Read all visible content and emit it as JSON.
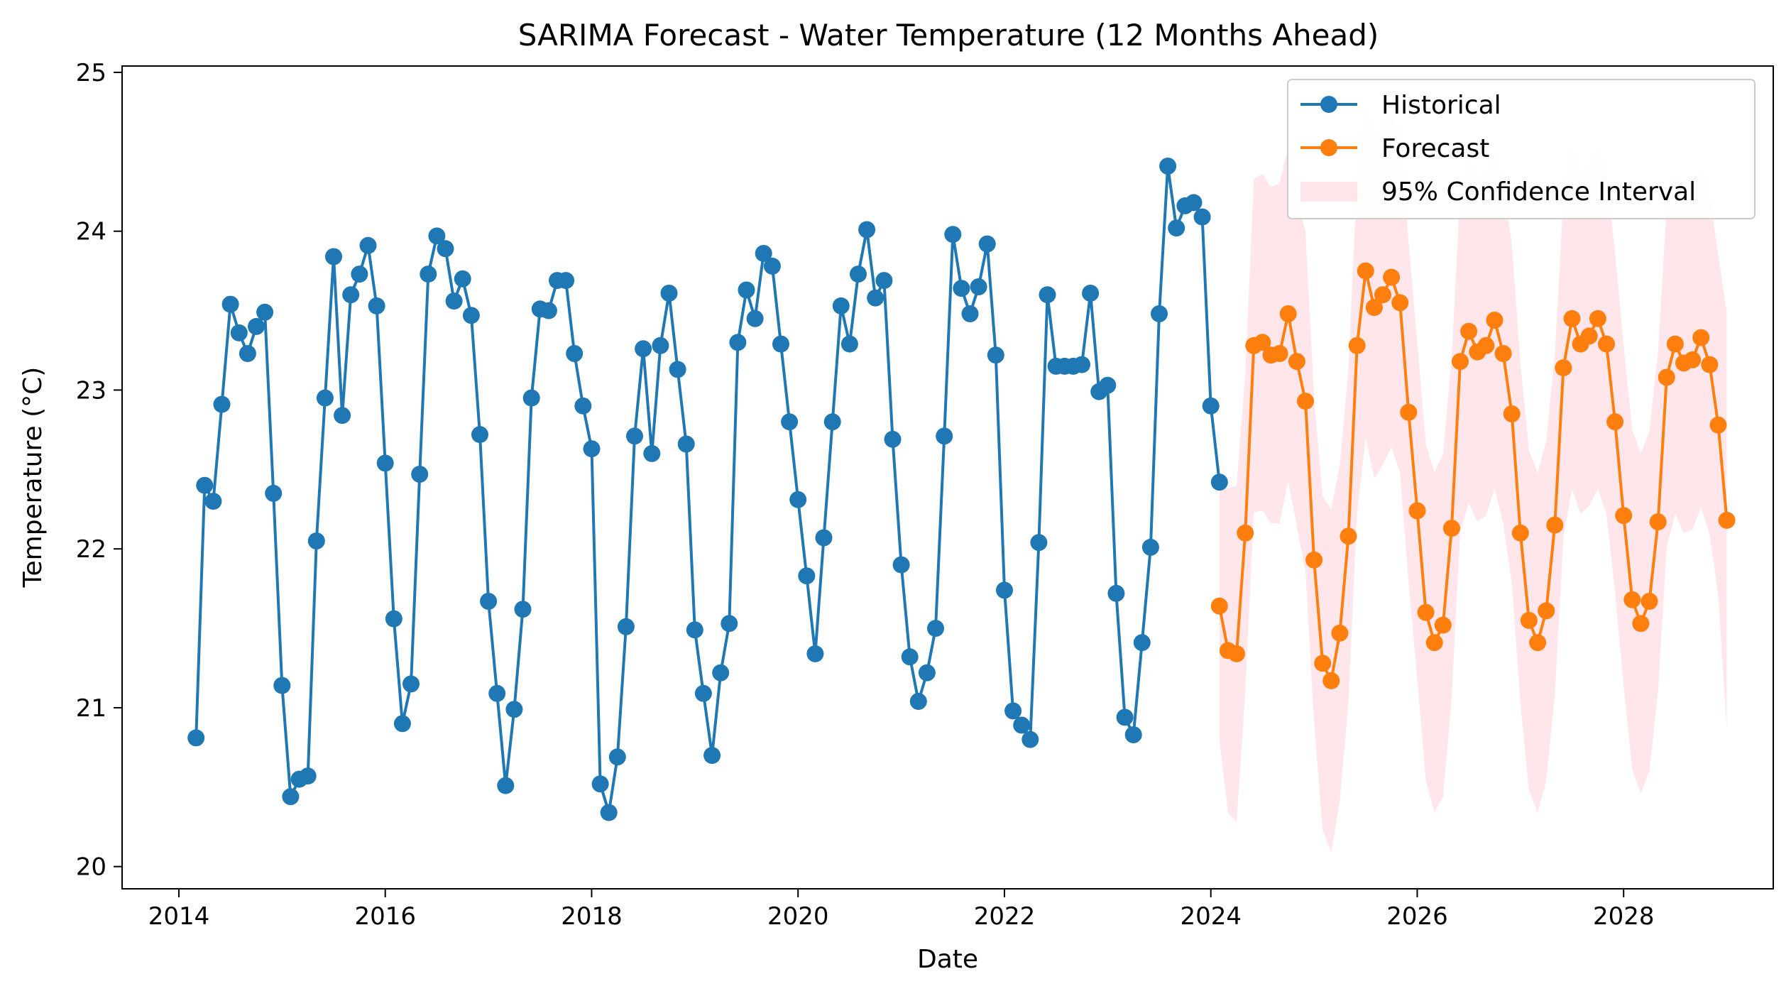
{
  "chart_data": {
    "type": "line",
    "title": "SARIMA Forecast - Water Temperature (12 Months Ahead)",
    "xlabel": "Date",
    "ylabel": "Temperature (°C)",
    "xlim": [
      2013.45,
      2029.45
    ],
    "ylim": [
      19.86,
      25.04
    ],
    "x_ticks": [
      2014,
      2016,
      2018,
      2020,
      2022,
      2024,
      2026,
      2028
    ],
    "y_ticks": [
      20,
      21,
      22,
      23,
      24,
      25
    ],
    "legend_position": "top-right",
    "grid": false,
    "series": [
      {
        "name": "Historical",
        "color": "#1f77b4",
        "start_year": 2014,
        "start_month": 3,
        "values": [
          20.81,
          22.4,
          22.3,
          22.91,
          23.54,
          23.36,
          23.23,
          23.4,
          23.49,
          22.35,
          21.14,
          20.44,
          20.55,
          20.57,
          22.05,
          22.95,
          23.84,
          22.84,
          23.6,
          23.73,
          23.91,
          23.53,
          22.54,
          21.56,
          20.9,
          21.15,
          22.47,
          23.73,
          23.97,
          23.89,
          23.56,
          23.7,
          23.47,
          22.72,
          21.67,
          21.09,
          20.51,
          20.99,
          21.62,
          22.95,
          23.51,
          23.5,
          23.69,
          23.69,
          23.23,
          22.9,
          22.63,
          20.52,
          20.34,
          20.69,
          21.51,
          22.71,
          23.26,
          22.6,
          23.28,
          23.61,
          23.13,
          22.66,
          21.49,
          21.09,
          20.7,
          21.22,
          21.53,
          23.3,
          23.63,
          23.45,
          23.86,
          23.78,
          23.29,
          22.8,
          22.31,
          21.83,
          21.34,
          22.07,
          22.8,
          23.53,
          23.29,
          23.73,
          24.01,
          23.58,
          23.69,
          22.69,
          21.9,
          21.32,
          21.04,
          21.22,
          21.5,
          22.71,
          23.98,
          23.64,
          23.48,
          23.65,
          23.92,
          23.22,
          21.74,
          20.98,
          20.89,
          20.8,
          22.04,
          23.6,
          23.15,
          23.15,
          23.15,
          23.16,
          23.61,
          22.99,
          23.03,
          21.72,
          20.94,
          20.83,
          21.41,
          22.01,
          23.48,
          24.41,
          24.02,
          24.16,
          24.18,
          24.09,
          22.9,
          22.42
        ]
      },
      {
        "name": "Forecast",
        "color": "#ff7f0e",
        "start_year": 2024,
        "start_month": 2,
        "values": [
          21.64,
          21.36,
          21.34,
          22.1,
          23.28,
          23.3,
          23.22,
          23.23,
          23.48,
          23.18,
          22.93,
          21.93,
          21.28,
          21.17,
          21.47,
          22.08,
          23.28,
          23.75,
          23.52,
          23.6,
          23.71,
          23.55,
          22.86,
          22.24,
          21.6,
          21.41,
          21.52,
          22.13,
          23.18,
          23.37,
          23.24,
          23.28,
          23.44,
          23.23,
          22.85,
          22.1,
          21.55,
          21.41,
          21.61,
          22.15,
          23.14,
          23.45,
          23.29,
          23.34,
          23.45,
          23.29,
          22.8,
          22.21,
          21.68,
          21.53,
          21.67,
          22.17,
          23.08,
          23.29,
          23.17,
          23.19,
          23.33,
          23.16,
          22.78,
          22.18
        ]
      }
    ],
    "confidence_interval": {
      "name": "95% Confidence Interval",
      "color": "#ffc0cb",
      "start_year": 2024,
      "start_month": 2,
      "upper": [
        22.48,
        22.38,
        22.4,
        23.1,
        24.33,
        24.36,
        24.28,
        24.3,
        24.53,
        24.22,
        24.0,
        22.95,
        22.33,
        22.25,
        22.53,
        23.13,
        24.34,
        24.8,
        24.6,
        24.67,
        24.78,
        24.62,
        23.93,
        23.3,
        22.66,
        22.48,
        22.6,
        23.2,
        24.25,
        24.45,
        24.31,
        24.35,
        24.5,
        24.3,
        23.92,
        23.17,
        22.62,
        22.48,
        22.68,
        23.22,
        24.21,
        24.52,
        24.36,
        24.41,
        24.52,
        24.36,
        23.87,
        23.28,
        22.75,
        22.6,
        22.74,
        23.24,
        24.15,
        24.36,
        24.24,
        24.26,
        24.4,
        24.23,
        23.85,
        23.49
      ],
      "lower": [
        20.8,
        20.34,
        20.28,
        21.1,
        22.23,
        22.24,
        22.16,
        22.16,
        22.43,
        22.14,
        21.86,
        20.91,
        20.23,
        20.09,
        20.41,
        21.03,
        22.22,
        22.7,
        22.44,
        22.53,
        22.64,
        22.48,
        21.79,
        21.18,
        20.54,
        20.34,
        20.44,
        21.06,
        22.11,
        22.29,
        22.17,
        22.21,
        22.38,
        22.16,
        21.78,
        21.03,
        20.48,
        20.34,
        20.54,
        21.08,
        22.07,
        22.38,
        22.22,
        22.27,
        22.38,
        22.22,
        21.73,
        21.14,
        20.61,
        20.46,
        20.6,
        21.1,
        22.01,
        22.22,
        22.1,
        22.12,
        22.26,
        22.09,
        21.71,
        20.87
      ]
    }
  }
}
